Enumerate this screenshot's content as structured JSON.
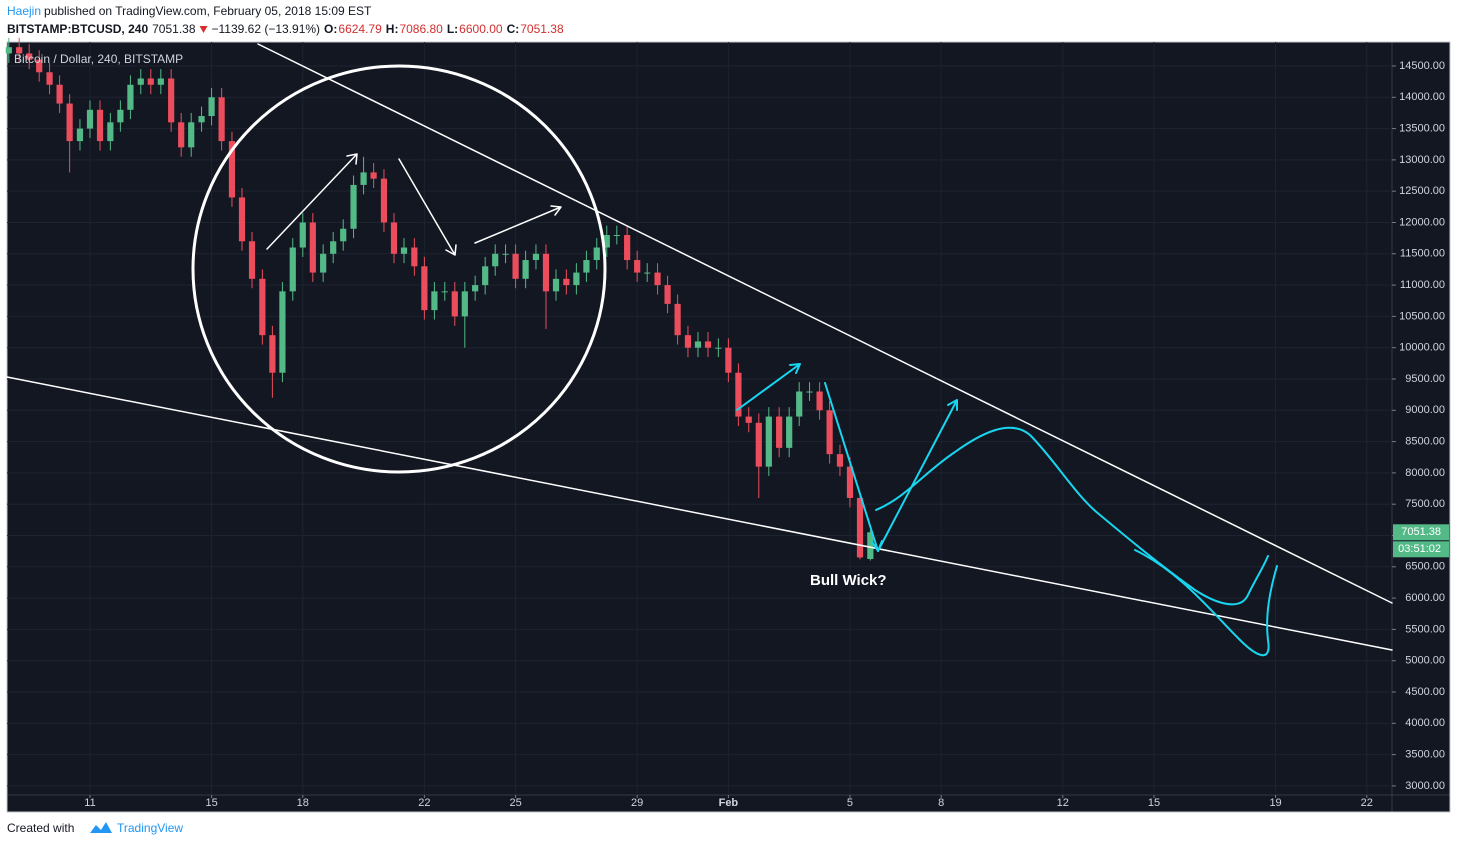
{
  "header": {
    "author": "Haejin",
    "published": "published on TradingView.com, February 05, 2018 15:09 EST",
    "symbol": "BITSTAMP:BTCUSD, 240",
    "last": "7051.38",
    "change": "−1139.62 (−13.91%)",
    "ohlc": [
      {
        "label": "O:",
        "value": "6624.79"
      },
      {
        "label": "H:",
        "value": "7086.80"
      },
      {
        "label": "L:",
        "value": "6600.00"
      },
      {
        "label": "C:",
        "value": "7051.38"
      }
    ]
  },
  "chart_data": {
    "type": "candlestick",
    "legend": "Bitcoin / Dollar, 240, BITSTAMP",
    "last_price_label": "7051.38",
    "countdown": "03:51:02",
    "annotations": [
      "Bull Wick?"
    ],
    "up_color": "#53b987",
    "down_color": "#eb4d5c",
    "grid": true,
    "xlim": [
      8.27,
      53.83
    ],
    "xticks": [
      11,
      15,
      18,
      22,
      25,
      29,
      {
        "value": 32,
        "label": "Feb"
      },
      5,
      8,
      12,
      15,
      19,
      22
    ],
    "xtick_positions_note_free": null,
    "ylim": [
      2855,
      14883
    ],
    "yticks": [
      {
        "value": 3000,
        "label": "3000.00"
      },
      {
        "value": 3500,
        "label": "3500.00"
      },
      {
        "value": 4000,
        "label": "4000.00"
      },
      {
        "value": 4500,
        "label": "4500.00"
      },
      {
        "value": 5000,
        "label": "5000.00"
      },
      {
        "value": 5500,
        "label": "5500.00"
      },
      {
        "value": 6000,
        "label": "6000.00"
      },
      {
        "value": 6500,
        "label": "6500.00"
      },
      {
        "value": 7000,
        "label": "7000.00"
      },
      {
        "value": 7500,
        "label": "7500.00"
      },
      {
        "value": 8000,
        "label": "8000.00"
      },
      {
        "value": 8500,
        "label": "8500.00"
      },
      {
        "value": 9000,
        "label": "9000.00"
      },
      {
        "value": 9500,
        "label": "9500.00"
      },
      {
        "value": 10000,
        "label": "10000.00"
      },
      {
        "value": 10500,
        "label": "10500.00"
      },
      {
        "value": 11000,
        "label": "11000.00"
      },
      {
        "value": 11500,
        "label": "11500.00"
      },
      {
        "value": 12000,
        "label": "12000.00"
      },
      {
        "value": 12500,
        "label": "12500.00"
      },
      {
        "value": 13000,
        "label": "13000.00"
      },
      {
        "value": 13500,
        "label": "13500.00"
      },
      {
        "value": 14000,
        "label": "14000.00"
      },
      {
        "value": 14500,
        "label": "14500.00"
      }
    ],
    "x": [
      8.33,
      8.67,
      9,
      9.33,
      9.67,
      10,
      10.33,
      10.67,
      11,
      11.33,
      11.67,
      12,
      12.33,
      12.67,
      13,
      13.33,
      13.67,
      14,
      14.33,
      14.67,
      15,
      15.33,
      15.67,
      16,
      16.33,
      16.67,
      17,
      17.33,
      17.67,
      18,
      18.33,
      18.67,
      19,
      19.33,
      19.67,
      20,
      20.33,
      20.67,
      21,
      21.33,
      21.67,
      22,
      22.33,
      22.67,
      23,
      23.33,
      23.67,
      24,
      24.33,
      24.67,
      25,
      25.33,
      25.67,
      26,
      26.33,
      26.67,
      27,
      27.33,
      27.67,
      28,
      28.33,
      28.67,
      29,
      29.33,
      29.67,
      30,
      30.33,
      30.67,
      31,
      31.33,
      31.67,
      32,
      32.33,
      32.67,
      33,
      33.33,
      33.67,
      34,
      34.33,
      34.67,
      35,
      35.33,
      35.67,
      36,
      36.33,
      36.67
    ],
    "open": [
      14700,
      14800,
      14700,
      14600,
      14400,
      14200,
      13900,
      13300,
      13500,
      13800,
      13300,
      13600,
      13800,
      14200,
      14300,
      14200,
      14300,
      13600,
      13200,
      13600,
      13700,
      14000,
      13300,
      12400,
      11700,
      11100,
      10200,
      9600,
      10900,
      11600,
      12000,
      11200,
      11500,
      11700,
      11900,
      12600,
      12800,
      12700,
      12000,
      11500,
      11600,
      11300,
      10600,
      10900,
      10900,
      10500,
      10900,
      11000,
      11300,
      11500,
      11500,
      11100,
      11400,
      11500,
      10900,
      11100,
      11000,
      11200,
      11400,
      11600,
      11800,
      11800,
      11400,
      11200,
      11200,
      11000,
      10700,
      10200,
      10000,
      10100,
      10000,
      10000,
      9600,
      8900,
      8800,
      8100,
      8900,
      8400,
      8900,
      9300,
      9300,
      9000,
      8300,
      8100,
      7600,
      6624.79
    ],
    "high": [
      14950,
      14950,
      14850,
      14750,
      14550,
      14350,
      14050,
      13650,
      13950,
      13950,
      13750,
      13950,
      14350,
      14450,
      14450,
      14450,
      14450,
      13750,
      13750,
      13850,
      14150,
      14150,
      13450,
      12550,
      11850,
      11250,
      10350,
      11050,
      11750,
      12150,
      12150,
      11650,
      11850,
      12050,
      12750,
      13050,
      12950,
      12850,
      12150,
      11750,
      11750,
      11450,
      11050,
      11050,
      11050,
      11050,
      11150,
      11450,
      11650,
      11650,
      11650,
      11550,
      11650,
      11650,
      11250,
      11250,
      11350,
      11550,
      11750,
      11950,
      11950,
      11950,
      11550,
      11350,
      11350,
      11150,
      10850,
      10350,
      10250,
      10250,
      10150,
      10150,
      9750,
      9050,
      8950,
      9050,
      9050,
      9050,
      9450,
      9450,
      9450,
      9150,
      8450,
      8250,
      7700,
      7086.8
    ],
    "low": [
      14550,
      14550,
      14450,
      14250,
      14050,
      13750,
      12800,
      13150,
      13350,
      13150,
      13150,
      13450,
      13650,
      14050,
      14050,
      14050,
      13450,
      13050,
      13050,
      13450,
      13550,
      13150,
      12250,
      11550,
      10950,
      10050,
      9200,
      9450,
      10750,
      11450,
      11050,
      11050,
      11350,
      11550,
      11750,
      12450,
      12550,
      11850,
      11350,
      11350,
      11150,
      10450,
      10450,
      10750,
      10350,
      10000,
      10750,
      10850,
      11150,
      11350,
      10950,
      10950,
      11250,
      10300,
      10750,
      10850,
      10850,
      11050,
      11250,
      11450,
      11650,
      11250,
      11050,
      11050,
      10850,
      10550,
      10050,
      9850,
      9850,
      9850,
      9850,
      9450,
      8750,
      8650,
      7600,
      7950,
      8250,
      8250,
      8750,
      9150,
      8850,
      8150,
      7950,
      7450,
      6620,
      6600
    ],
    "close": [
      14800,
      14700,
      14600,
      14400,
      14200,
      13900,
      13300,
      13500,
      13800,
      13300,
      13600,
      13800,
      14200,
      14300,
      14200,
      14300,
      13600,
      13200,
      13600,
      13700,
      14000,
      13300,
      12400,
      11700,
      11100,
      10200,
      9600,
      10900,
      11600,
      12000,
      11200,
      11500,
      11700,
      11900,
      12600,
      12800,
      12700,
      12000,
      11500,
      11600,
      11300,
      10600,
      10900,
      10900,
      10500,
      10900,
      11000,
      11300,
      11500,
      11500,
      11100,
      11400,
      11500,
      10900,
      11100,
      11000,
      11200,
      11400,
      11600,
      11800,
      11800,
      11400,
      11200,
      11200,
      11000,
      10700,
      10200,
      10000,
      10100,
      10000,
      10000,
      9600,
      8900,
      8800,
      8100,
      8900,
      8400,
      8900,
      9300,
      9300,
      9000,
      8300,
      8100,
      7600,
      6650,
      7051.38
    ]
  },
  "footer": {
    "created": "Created with",
    "brand": "TradingView"
  }
}
